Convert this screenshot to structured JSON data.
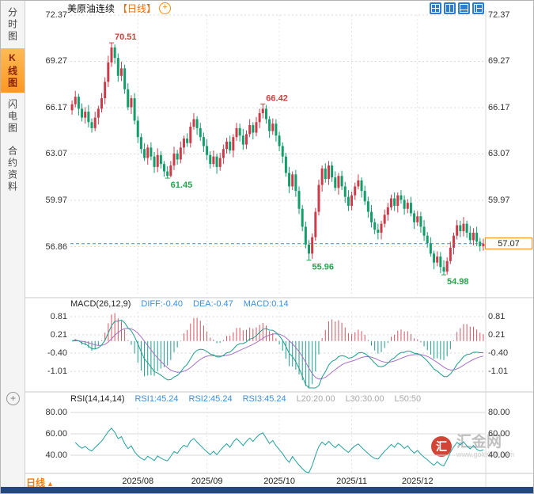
{
  "header": {
    "title": "美原油连续",
    "timeframe_tag": "【日线】"
  },
  "icons": {
    "plus": "+"
  },
  "sidebar": {
    "items": [
      {
        "label": "分时图",
        "active": false
      },
      {
        "label": "K线图",
        "active": true
      },
      {
        "label": "闪电图",
        "active": false
      },
      {
        "label": "合约资料",
        "active": false
      }
    ]
  },
  "macd": {
    "title": "MACD(26,12,9)",
    "diff": "DIFF:-0.40",
    "dea": "DEA:-0.47",
    "macd": "MACD:0.14"
  },
  "rsi": {
    "title": "RSI(14,14,14)",
    "r1": "RSI1:45.24",
    "r2": "RSI2:45.24",
    "r3": "RSI3:45.24",
    "l20": "L20:20.00",
    "l30": "L30:30.00",
    "l50": "L50:50"
  },
  "price_tag": {
    "label": "57.07"
  },
  "footer": {
    "timeframe": "日线",
    "arrow": "▲"
  },
  "watermark": {
    "logo_char": "汇",
    "name": "汇金网",
    "url": "www.gold678.com"
  },
  "colors": {
    "up": "#cc3b4a",
    "down": "#129e6a",
    "ann_up": "#d23c3c",
    "ann_down": "#2ba14e",
    "diff_line": "#1d9e8d",
    "dea_line": "#a86fc9",
    "hist_up": "#d25562",
    "hist_down": "#1d9e8d",
    "rsi_line": "#24a0a0",
    "grid": "#d9d9d9",
    "divider": "#c7c7c7",
    "accent_blue": "#3d8edb",
    "accent_orange": "#ff7e1f",
    "price_line": "#3d8edb"
  },
  "chart_data": {
    "type": "candlestick",
    "title": "美原油连续 日线 (US Crude Oil Continuous, Daily)",
    "x_labels": [
      "2025/08",
      "2025/09",
      "2025/10",
      "2025/11",
      "2025/12"
    ],
    "x_label_indices": [
      20,
      41,
      63,
      85,
      105
    ],
    "main_axis": {
      "values": [
        72.37,
        69.27,
        66.17,
        63.07,
        59.97,
        56.86
      ],
      "labels": [
        "72.37",
        "69.27",
        "66.17",
        "63.07",
        "59.97",
        "56.86"
      ]
    },
    "macd_axis": {
      "values": [
        0.81,
        0.21,
        -0.4,
        -1.01
      ],
      "labels": [
        "0.81",
        "0.21",
        "-0.40",
        "-1.01"
      ]
    },
    "rsi_axis": {
      "values": [
        80,
        60,
        40
      ],
      "labels": [
        "80.00",
        "60.00",
        "40.00"
      ]
    },
    "current_price": 57.07,
    "annotations": [
      {
        "index": 12,
        "label": "70.51",
        "kind": "high"
      },
      {
        "index": 29,
        "label": "61.45",
        "kind": "low"
      },
      {
        "index": 58,
        "label": "66.42",
        "kind": "high"
      },
      {
        "index": 72,
        "label": "55.96",
        "kind": "low"
      },
      {
        "index": 113,
        "label": "54.98",
        "kind": "low"
      }
    ],
    "indicators": {
      "macd_params": [
        26,
        12,
        9
      ],
      "rsi_params": [
        14,
        14,
        14
      ]
    },
    "candles": [
      [
        66.0,
        66.65,
        65.7,
        66.4
      ],
      [
        66.4,
        67.3,
        66.2,
        66.9
      ],
      [
        66.9,
        67.1,
        65.65,
        66.1
      ],
      [
        66.1,
        66.45,
        65.25,
        65.5
      ],
      [
        65.5,
        66.2,
        65.1,
        65.9
      ],
      [
        65.9,
        66.35,
        64.85,
        65.2
      ],
      [
        65.2,
        65.45,
        64.5,
        64.8
      ],
      [
        64.8,
        65.9,
        64.6,
        65.5
      ],
      [
        65.5,
        66.3,
        65.05,
        66.1
      ],
      [
        66.1,
        67.15,
        65.85,
        66.8
      ],
      [
        66.8,
        68.2,
        66.4,
        67.9
      ],
      [
        67.9,
        69.65,
        67.55,
        69.2
      ],
      [
        69.2,
        70.51,
        68.9,
        70.2
      ],
      [
        70.2,
        70.4,
        69.1,
        69.5
      ],
      [
        69.5,
        69.8,
        67.9,
        68.3
      ],
      [
        68.3,
        69.25,
        67.95,
        68.8
      ],
      [
        68.8,
        69.05,
        67.1,
        67.4
      ],
      [
        67.4,
        67.8,
        66.0,
        66.2
      ],
      [
        66.2,
        67.0,
        65.75,
        66.8
      ],
      [
        66.8,
        67.15,
        65.05,
        65.3
      ],
      [
        65.3,
        65.6,
        63.8,
        64.2
      ],
      [
        64.2,
        64.45,
        63.1,
        63.4
      ],
      [
        63.4,
        63.8,
        62.6,
        62.8
      ],
      [
        62.8,
        63.7,
        62.35,
        63.5
      ],
      [
        63.5,
        63.85,
        62.65,
        62.9
      ],
      [
        62.9,
        63.2,
        61.8,
        62.2
      ],
      [
        62.2,
        63.45,
        61.85,
        63.0
      ],
      [
        63.0,
        63.25,
        62.1,
        62.4
      ],
      [
        62.4,
        62.6,
        61.55,
        61.9
      ],
      [
        61.9,
        62.25,
        61.45,
        61.6
      ],
      [
        61.6,
        62.6,
        61.5,
        62.3
      ],
      [
        62.3,
        63.55,
        62.0,
        63.1
      ],
      [
        63.1,
        63.35,
        62.35,
        62.7
      ],
      [
        62.7,
        63.9,
        62.45,
        63.5
      ],
      [
        63.5,
        64.3,
        63.05,
        64.1
      ],
      [
        64.1,
        64.45,
        63.55,
        63.8
      ],
      [
        63.8,
        65.2,
        63.5,
        64.9
      ],
      [
        64.9,
        65.8,
        64.7,
        65.4
      ],
      [
        65.4,
        65.6,
        64.35,
        64.8
      ],
      [
        64.8,
        65.15,
        63.95,
        64.2
      ],
      [
        64.2,
        64.5,
        63.2,
        63.6
      ],
      [
        63.6,
        64.05,
        62.65,
        63.0
      ],
      [
        63.0,
        63.25,
        62.1,
        62.4
      ],
      [
        62.4,
        63.3,
        62.2,
        62.9
      ],
      [
        62.9,
        63.1,
        61.75,
        62.2
      ],
      [
        62.2,
        63.15,
        61.95,
        62.8
      ],
      [
        62.8,
        63.7,
        62.4,
        63.4
      ],
      [
        63.4,
        64.15,
        63.1,
        63.9
      ],
      [
        63.9,
        64.3,
        63.1,
        63.3
      ],
      [
        63.3,
        64.4,
        62.85,
        64.2
      ],
      [
        64.2,
        65.15,
        63.95,
        64.8
      ],
      [
        64.8,
        65.1,
        63.9,
        64.3
      ],
      [
        64.3,
        64.75,
        63.35,
        63.7
      ],
      [
        63.7,
        64.65,
        63.4,
        64.4
      ],
      [
        64.4,
        65.4,
        64.2,
        65.0
      ],
      [
        65.0,
        65.2,
        64.05,
        64.5
      ],
      [
        64.5,
        65.55,
        64.25,
        65.2
      ],
      [
        65.2,
        66.1,
        64.8,
        65.8
      ],
      [
        65.8,
        66.42,
        65.45,
        66.1
      ],
      [
        66.1,
        66.35,
        65.1,
        65.4
      ],
      [
        65.4,
        65.6,
        64.15,
        64.6
      ],
      [
        64.6,
        65.45,
        64.35,
        65.1
      ],
      [
        65.1,
        65.4,
        63.9,
        64.3
      ],
      [
        64.3,
        64.55,
        63.25,
        63.6
      ],
      [
        63.6,
        63.85,
        62.45,
        62.9
      ],
      [
        62.9,
        63.15,
        61.55,
        61.8
      ],
      [
        61.8,
        62.2,
        60.45,
        60.9
      ],
      [
        60.9,
        61.9,
        60.65,
        61.7
      ],
      [
        61.7,
        62.0,
        60.2,
        60.6
      ],
      [
        60.6,
        60.9,
        59.05,
        59.4
      ],
      [
        59.4,
        59.65,
        57.9,
        58.2
      ],
      [
        58.2,
        58.55,
        56.75,
        57.0
      ],
      [
        57.0,
        57.3,
        55.96,
        56.4
      ],
      [
        56.4,
        57.75,
        56.05,
        57.5
      ],
      [
        57.5,
        59.45,
        57.25,
        59.2
      ],
      [
        59.2,
        61.35,
        58.95,
        61.0
      ],
      [
        61.0,
        62.3,
        60.55,
        62.1
      ],
      [
        62.1,
        62.45,
        61.15,
        61.4
      ],
      [
        61.4,
        62.6,
        61.0,
        62.3
      ],
      [
        62.3,
        62.55,
        61.2,
        61.5
      ],
      [
        61.5,
        61.9,
        60.6,
        60.8
      ],
      [
        60.8,
        61.8,
        60.35,
        61.6
      ],
      [
        61.6,
        61.95,
        60.65,
        60.9
      ],
      [
        60.9,
        61.2,
        59.8,
        60.2
      ],
      [
        60.2,
        60.65,
        59.25,
        59.6
      ],
      [
        59.6,
        60.55,
        59.3,
        60.3
      ],
      [
        60.3,
        61.15,
        60.0,
        60.9
      ],
      [
        60.9,
        61.7,
        60.7,
        61.3
      ],
      [
        61.3,
        61.5,
        60.15,
        60.6
      ],
      [
        60.6,
        60.95,
        59.65,
        59.9
      ],
      [
        59.9,
        60.2,
        58.8,
        59.2
      ],
      [
        59.2,
        59.65,
        58.15,
        58.5
      ],
      [
        58.5,
        58.75,
        57.7,
        58.0
      ],
      [
        58.0,
        58.4,
        57.35,
        57.8
      ],
      [
        57.8,
        58.6,
        57.35,
        58.4
      ],
      [
        58.4,
        59.35,
        58.15,
        59.0
      ],
      [
        59.0,
        59.8,
        58.6,
        59.5
      ],
      [
        59.5,
        60.35,
        59.3,
        60.1
      ],
      [
        60.1,
        60.5,
        59.25,
        59.6
      ],
      [
        59.6,
        60.5,
        59.15,
        60.3
      ],
      [
        60.3,
        60.65,
        59.75,
        60.0
      ],
      [
        60.0,
        60.3,
        59.0,
        59.4
      ],
      [
        59.4,
        60.05,
        59.1,
        59.8
      ],
      [
        59.8,
        60.2,
        58.9,
        59.1
      ],
      [
        59.1,
        59.3,
        58.05,
        58.5
      ],
      [
        58.5,
        59.25,
        58.25,
        58.9
      ],
      [
        58.9,
        59.2,
        57.8,
        58.2
      ],
      [
        58.2,
        58.65,
        57.25,
        57.6
      ],
      [
        57.6,
        57.85,
        56.8,
        57.1
      ],
      [
        57.1,
        57.5,
        56.2,
        56.4
      ],
      [
        56.4,
        56.6,
        55.35,
        55.8
      ],
      [
        55.8,
        56.55,
        55.55,
        56.2
      ],
      [
        56.2,
        56.5,
        55.1,
        55.5
      ],
      [
        55.5,
        55.95,
        54.98,
        55.2
      ],
      [
        55.2,
        56.15,
        55.0,
        55.9
      ],
      [
        55.9,
        57.2,
        55.7,
        56.8
      ],
      [
        56.8,
        57.8,
        56.35,
        57.6
      ],
      [
        57.6,
        58.65,
        57.35,
        58.3
      ],
      [
        58.3,
        58.6,
        57.5,
        57.9
      ],
      [
        57.9,
        58.85,
        57.55,
        58.4
      ],
      [
        58.4,
        58.6,
        57.45,
        57.8
      ],
      [
        57.8,
        58.25,
        57.05,
        57.3
      ],
      [
        57.3,
        58.1,
        56.95,
        57.8
      ],
      [
        57.8,
        58.2,
        56.9,
        57.2
      ],
      [
        57.2,
        57.45,
        56.55,
        56.9
      ],
      [
        56.9,
        57.4,
        56.6,
        57.07
      ]
    ]
  }
}
